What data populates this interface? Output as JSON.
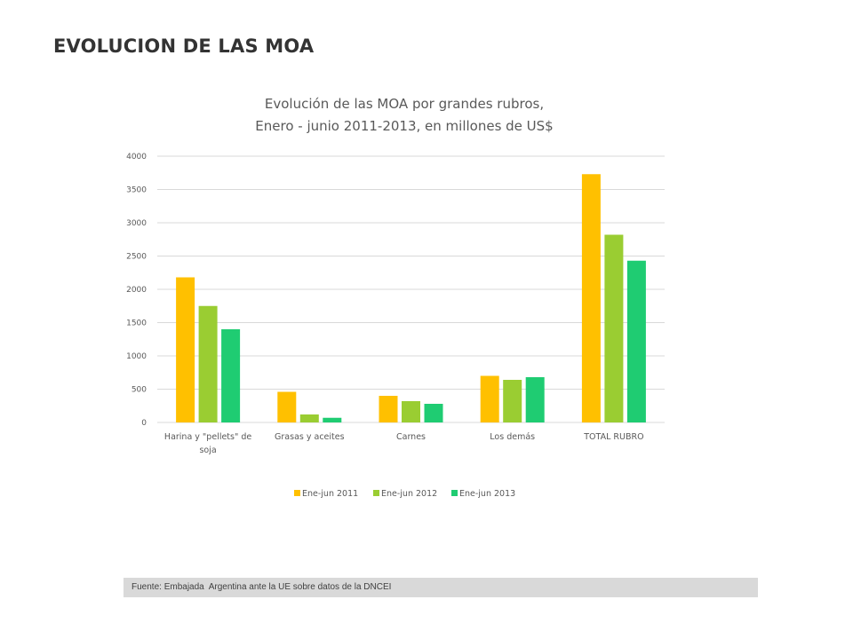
{
  "page": {
    "heading": "EVOLUCION DE LAS MOA",
    "source_note": "Fuente: Embajada  Argentina ante la UE sobre datos de la DNCEI"
  },
  "chart_data": {
    "type": "bar",
    "title_line1": "Evolución de las MOA por grandes rubros,",
    "title_line2": "Enero - junio 2011-2013, en millones de US$",
    "xlabel": "",
    "ylabel": "",
    "categories": [
      [
        "Harina y \"pellets\" de",
        "soja"
      ],
      [
        "Grasas y aceites"
      ],
      [
        "Carnes"
      ],
      [
        "Los demás"
      ],
      [
        "TOTAL RUBRO"
      ]
    ],
    "series": [
      {
        "name": "Ene-jun 2011",
        "color": "#ffc000",
        "values": [
          2180,
          460,
          400,
          700,
          3730
        ]
      },
      {
        "name": "Ene-jun 2012",
        "color": "#9acd32",
        "values": [
          1750,
          120,
          320,
          640,
          2820
        ]
      },
      {
        "name": "Ene-jun 2013",
        "color": "#1fcc72",
        "values": [
          1400,
          70,
          280,
          680,
          2430
        ]
      }
    ],
    "ylim": [
      0,
      4000
    ],
    "yticks": [
      0,
      500,
      1000,
      1500,
      2000,
      2500,
      3000,
      3500,
      4000
    ],
    "grid": true,
    "gridline_color": "#d9d9d9",
    "legend_position": "bottom"
  }
}
